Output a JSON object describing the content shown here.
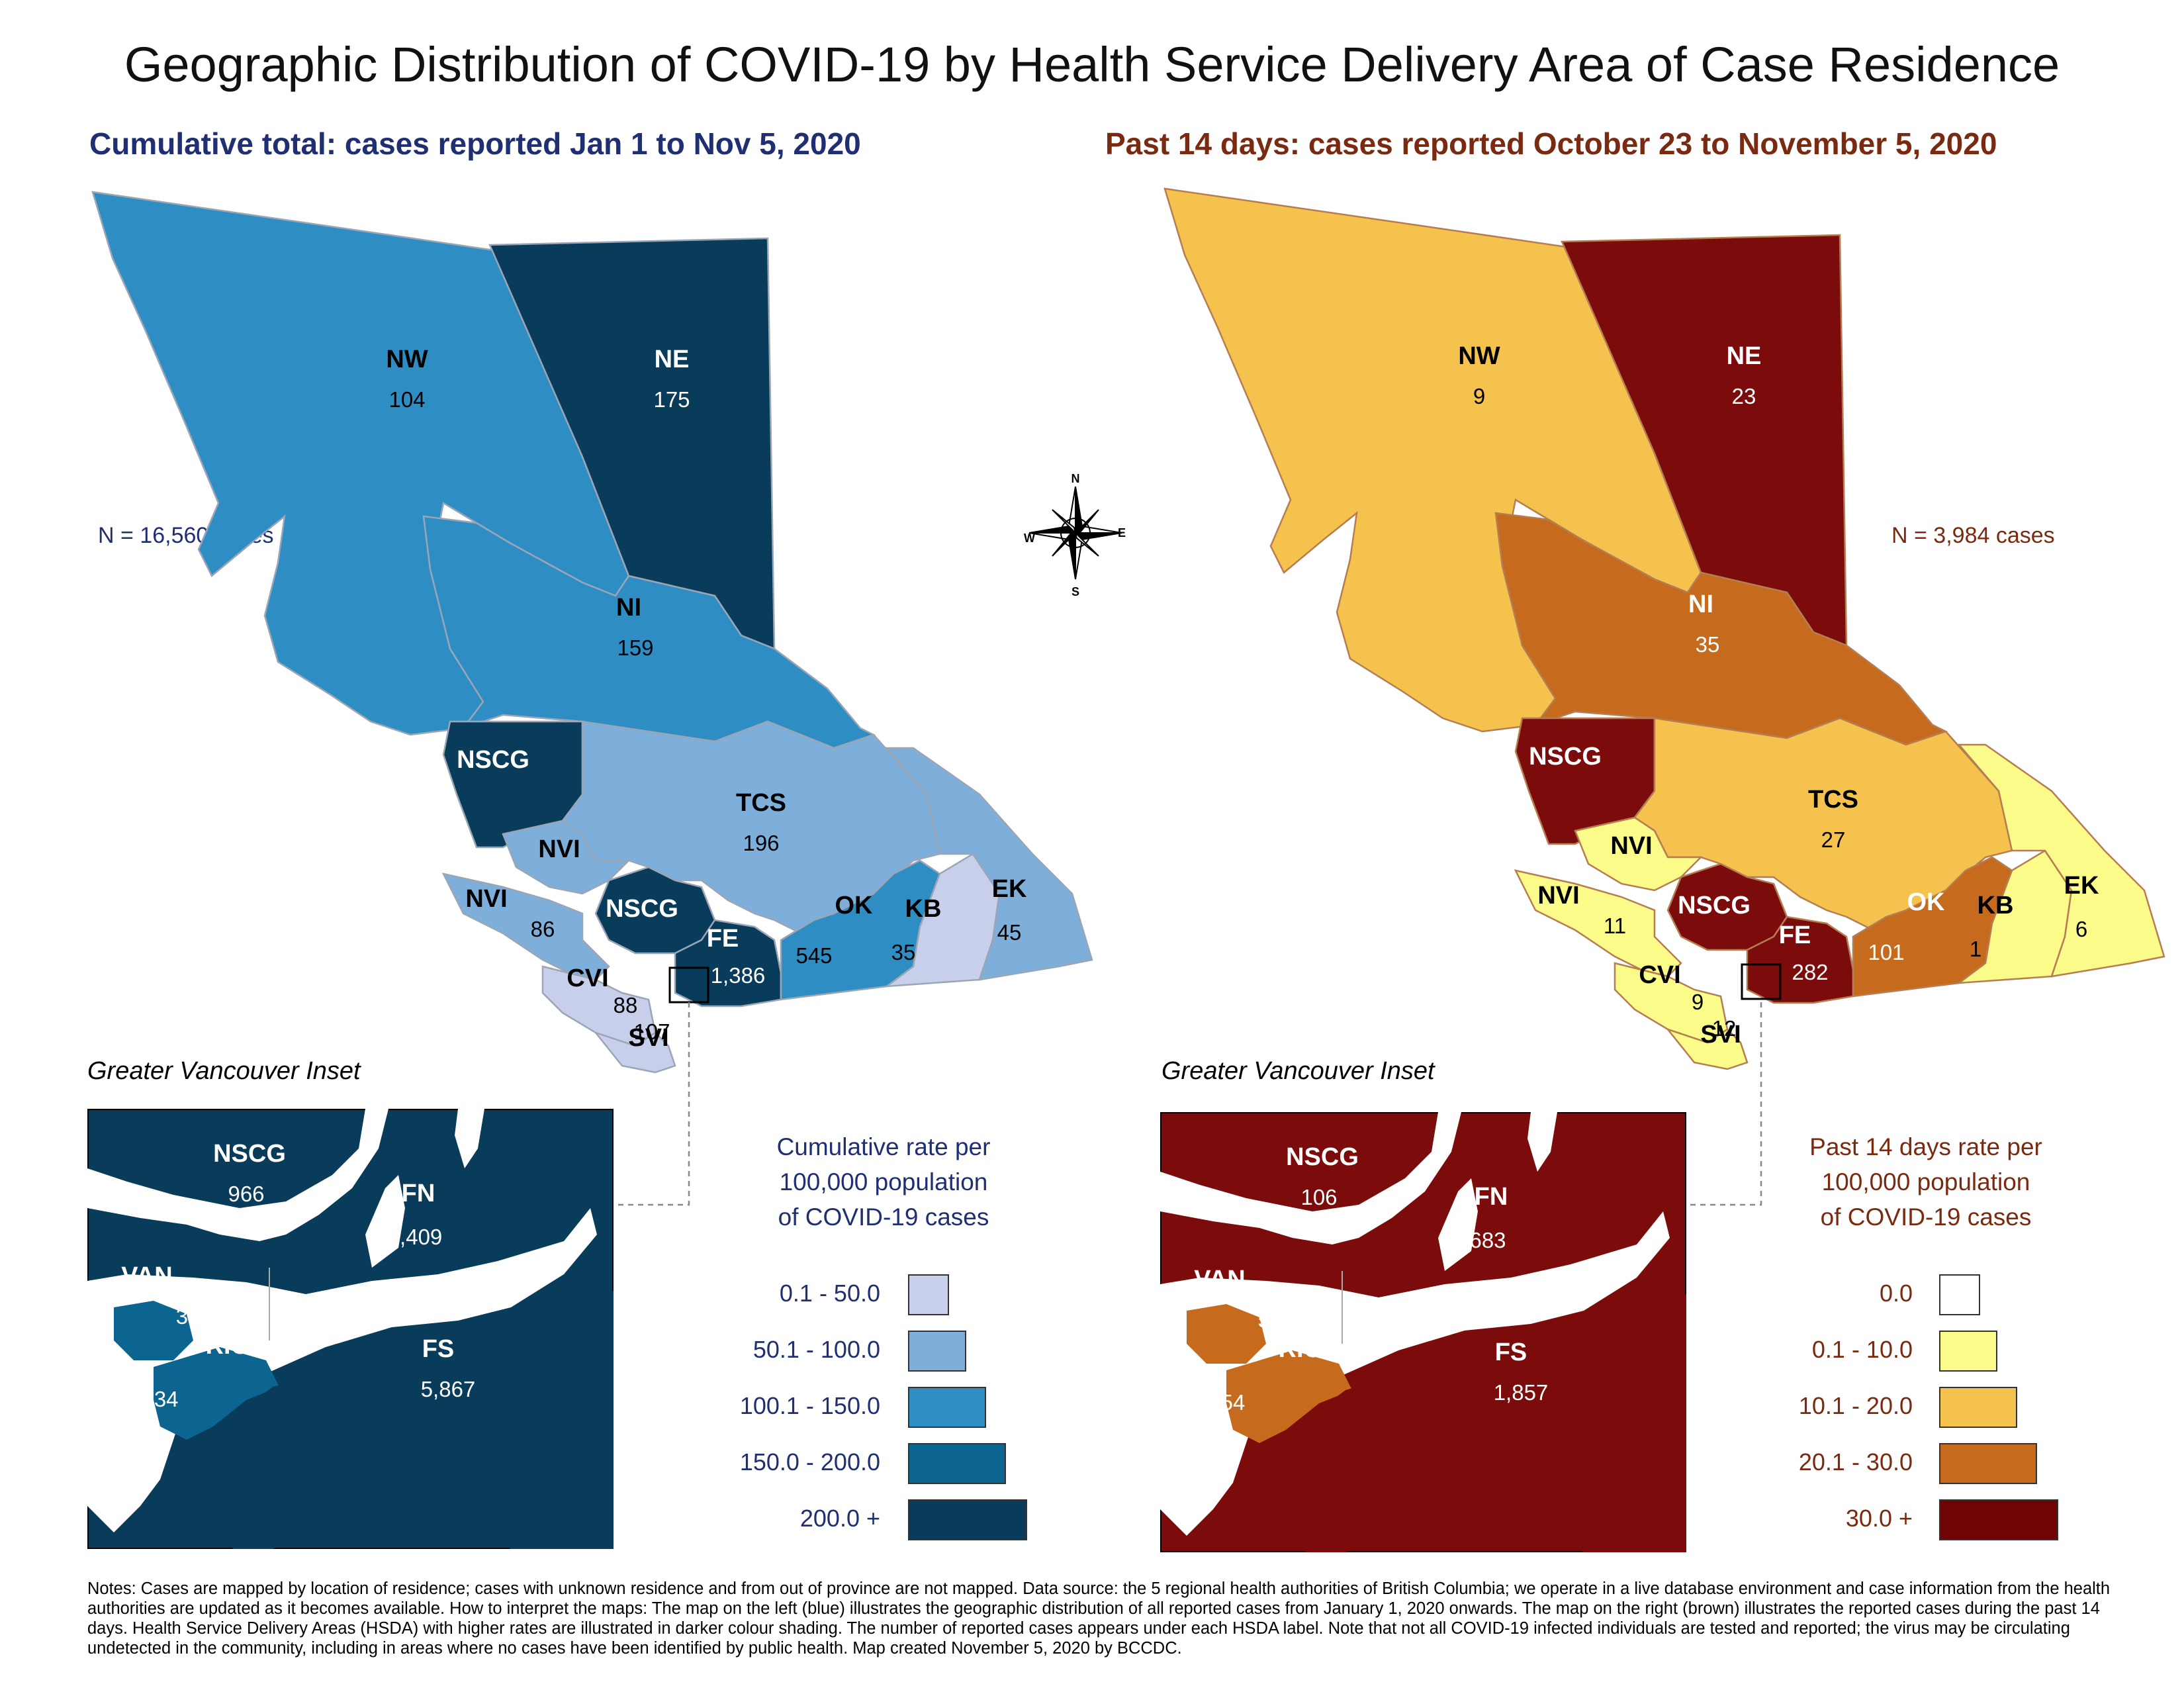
{
  "title": "Geographic Distribution of COVID-19 by Health Service Delivery Area of Case Residence",
  "left_map": {
    "subtitle": "Cumulative total: cases reported Jan 1 to Nov 5, 2020",
    "n_label": "N = 16,560 cases",
    "regions": [
      {
        "code": "NW",
        "count": "104",
        "color": "#2e8ec4"
      },
      {
        "code": "NE",
        "count": "175",
        "color": "#093b5a"
      },
      {
        "code": "NI",
        "count": "159",
        "color": "#2e8ec4"
      },
      {
        "code": "NSCG",
        "count": "",
        "color": "#093b5a"
      },
      {
        "code": "TCS",
        "count": "196",
        "color": "#7eafda"
      },
      {
        "code": "NVI",
        "count": "",
        "color": "#7eafda"
      },
      {
        "code": "NVI",
        "count": "86",
        "color": "#7eafda"
      },
      {
        "code": "NSCG",
        "count": "",
        "color": "#093b5a"
      },
      {
        "code": "FE",
        "count": "1,386",
        "color": "#093b5a"
      },
      {
        "code": "OK",
        "count": "545",
        "color": "#2e8ec4"
      },
      {
        "code": "KB",
        "count": "35",
        "color": "#c7cfeb"
      },
      {
        "code": "EK",
        "count": "45",
        "color": "#7eafda"
      },
      {
        "code": "CVI",
        "count": "88",
        "color": "#c7cfeb"
      },
      {
        "code": "SVI",
        "count": "107",
        "color": "#c7cfeb"
      }
    ],
    "inset": {
      "title": "Greater Vancouver Inset",
      "regions": [
        {
          "code": "NSCG",
          "count": "966"
        },
        {
          "code": "FN",
          "count": "2,409"
        },
        {
          "code": "VAN",
          "count": "3,599"
        },
        {
          "code": "RICH",
          "count": "434"
        },
        {
          "code": "FS",
          "count": "5,867"
        }
      ]
    },
    "legend": {
      "title_lines": [
        "Cumulative rate per",
        "100,000 population",
        "of COVID-19 cases"
      ],
      "items": [
        {
          "label": "0.1 - 50.0",
          "color": "#c7cfeb"
        },
        {
          "label": "50.1 - 100.0",
          "color": "#7eafda"
        },
        {
          "label": "100.1 - 150.0",
          "color": "#2e8ec4"
        },
        {
          "label": "150.0 - 200.0",
          "color": "#0c6590"
        },
        {
          "label": "200.0 +",
          "color": "#093b5a"
        }
      ]
    }
  },
  "right_map": {
    "subtitle": "Past 14 days: cases reported October 23 to November 5, 2020",
    "n_label": "N = 3,984 cases",
    "regions": [
      {
        "code": "NW",
        "count": "9",
        "color": "#f6c24e"
      },
      {
        "code": "NE",
        "count": "23",
        "color": "#7c0c0c"
      },
      {
        "code": "NI",
        "count": "35",
        "color": "#c66b1d"
      },
      {
        "code": "NSCG",
        "count": "",
        "color": "#7c0c0c"
      },
      {
        "code": "TCS",
        "count": "27",
        "color": "#f6c24e"
      },
      {
        "code": "NVI",
        "count": "",
        "color": "#fbfb8a"
      },
      {
        "code": "NVI",
        "count": "11",
        "color": "#fbfb8a"
      },
      {
        "code": "NSCG",
        "count": "",
        "color": "#7c0c0c"
      },
      {
        "code": "FE",
        "count": "282",
        "color": "#7c0c0c"
      },
      {
        "code": "OK",
        "count": "101",
        "color": "#c66b1d"
      },
      {
        "code": "KB",
        "count": "1",
        "color": "#fbfb8a"
      },
      {
        "code": "EK",
        "count": "6",
        "color": "#fbfb8a"
      },
      {
        "code": "CVI",
        "count": "9",
        "color": "#fbfb8a"
      },
      {
        "code": "SVI",
        "count": "12",
        "color": "#fbfb8a"
      }
    ],
    "inset": {
      "title": "Greater Vancouver Inset",
      "regions": [
        {
          "code": "NSCG",
          "count": "106"
        },
        {
          "code": "FN",
          "count": "683"
        },
        {
          "code": "VAN",
          "count": "566"
        },
        {
          "code": "RICH",
          "count": "54"
        },
        {
          "code": "FS",
          "count": "1,857"
        }
      ]
    },
    "legend": {
      "title_lines": [
        "Past 14 days rate per",
        "100,000 population",
        "of COVID-19 cases"
      ],
      "items": [
        {
          "label": "0.0",
          "color": "#ffffff"
        },
        {
          "label": "0.1 - 10.0",
          "color": "#fbfb8a"
        },
        {
          "label": "10.1 - 20.0",
          "color": "#f6c24e"
        },
        {
          "label": "20.1 - 30.0",
          "color": "#c66b1d"
        },
        {
          "label": "30.0 +",
          "color": "#6e0404"
        }
      ]
    }
  },
  "compass": {
    "n": "N",
    "s": "S",
    "e": "E",
    "w": "W"
  },
  "notes": "Notes: Cases are mapped by location of residence; cases with unknown residence and from out of province are not mapped. Data source: the 5 regional health authorities of British Columbia; we operate in a live database environment and case information from the health authorities are updated as it becomes available. How to interpret the maps: The map on the left (blue) illustrates the geographic distribution of all reported cases from January 1, 2020 onwards. The map on the right (brown) illustrates the reported cases during the past 14 days. Health Service Delivery Areas (HSDA) with higher rates are illustrated in darker colour shading. The number of reported cases appears under each HSDA label. Note that not all COVID-19 infected individuals are tested and reported; the virus may be circulating undetected in the community, including in areas where no cases have been identified by public health. Map created November 5, 2020 by BCCDC."
}
